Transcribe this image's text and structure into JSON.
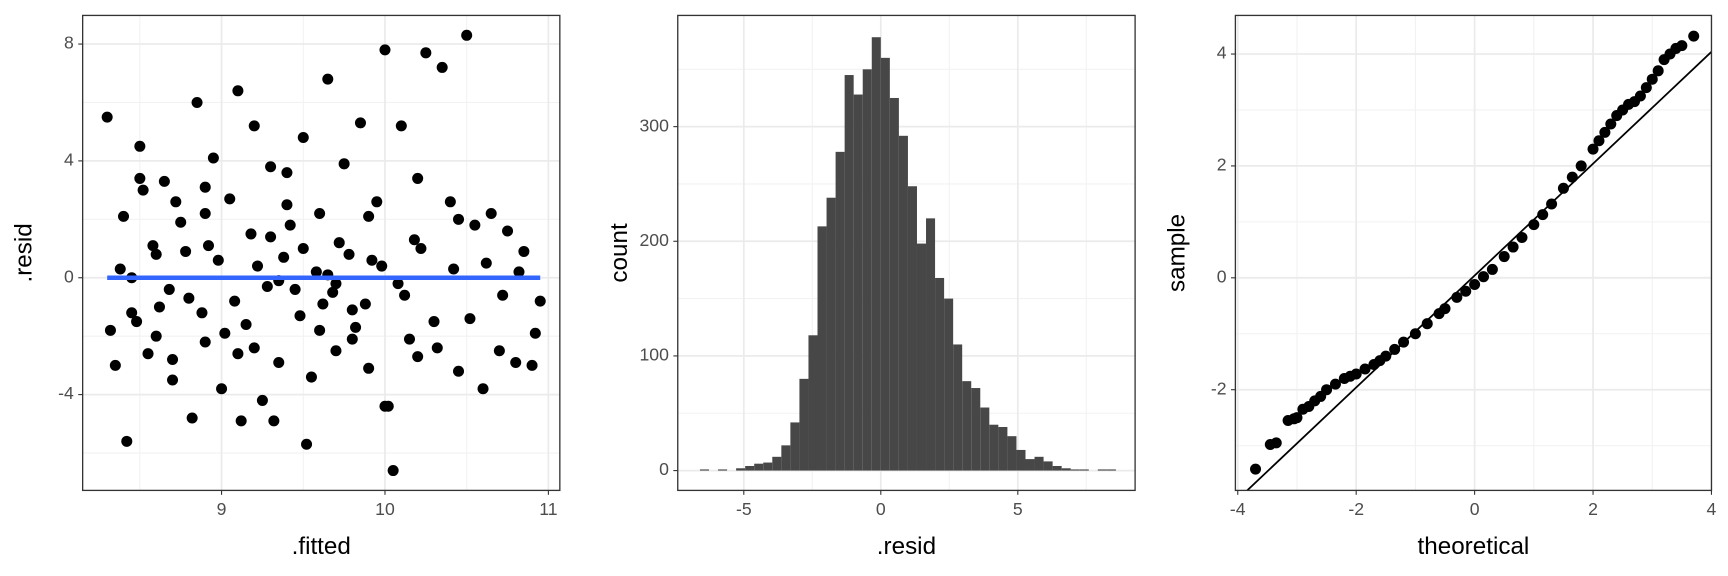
{
  "chart_data": [
    {
      "type": "scatter",
      "xlabel": ".fitted",
      "ylabel": ".resid",
      "x": [
        8.3,
        8.35,
        8.4,
        8.45,
        8.5,
        8.55,
        8.6,
        8.65,
        8.7,
        8.75,
        8.8,
        8.85,
        8.9,
        8.95,
        9.0,
        9.05,
        9.1,
        9.15,
        9.2,
        9.25,
        9.3,
        9.35,
        9.4,
        9.45,
        9.5,
        9.55,
        9.6,
        9.65,
        9.7,
        9.75,
        9.8,
        9.85,
        9.9,
        9.95,
        10.0,
        10.05,
        10.1,
        10.15,
        10.2,
        10.25,
        10.3,
        10.35,
        10.4,
        10.45,
        10.5,
        10.55,
        10.6,
        10.65,
        10.7,
        10.75,
        10.8,
        10.85,
        10.9,
        10.95,
        8.32,
        8.42,
        8.52,
        8.62,
        8.72,
        8.82,
        8.92,
        9.02,
        9.12,
        9.22,
        9.32,
        9.42,
        9.52,
        9.62,
        9.72,
        9.82,
        9.92,
        10.02,
        10.12,
        10.22,
        10.32,
        10.42,
        10.52,
        10.62,
        10.72,
        10.82,
        10.92,
        8.38,
        8.48,
        8.58,
        8.68,
        8.78,
        8.88,
        8.98,
        9.08,
        9.18,
        9.28,
        9.38,
        9.48,
        9.58,
        9.68,
        9.78,
        9.88,
        9.98,
        10.08,
        10.18,
        8.6,
        8.9,
        9.2,
        9.4,
        9.6,
        9.8,
        10.0,
        10.2,
        8.5,
        8.7,
        8.9,
        9.1,
        9.3,
        9.5,
        9.7,
        9.9,
        8.45,
        9.35,
        9.65,
        10.45
      ],
      "values": [
        5.5,
        -3.0,
        2.1,
        -1.2,
        4.5,
        -2.6,
        0.8,
        3.3,
        -3.5,
        1.9,
        -0.7,
        6.0,
        -2.2,
        4.1,
        -3.8,
        2.7,
        6.4,
        -1.6,
        5.2,
        -4.2,
        1.4,
        -2.9,
        3.6,
        -0.4,
        4.8,
        -3.4,
        2.2,
        6.8,
        -2.5,
        3.9,
        -1.1,
        5.3,
        -3.1,
        2.6,
        7.8,
        -6.6,
        5.2,
        -2.1,
        3.4,
        7.7,
        -1.5,
        7.2,
        2.6,
        -3.2,
        8.3,
        1.8,
        -3.8,
        2.2,
        -2.5,
        1.6,
        -2.9,
        0.9,
        -3.0,
        -0.8,
        -1.8,
        -5.6,
        3.0,
        -1.0,
        2.6,
        -4.8,
        1.1,
        -1.9,
        -4.9,
        0.4,
        -4.9,
        1.8,
        -5.7,
        -0.9,
        1.2,
        -1.7,
        0.6,
        -4.4,
        -0.6,
        1.0,
        -2.4,
        0.3,
        -1.4,
        0.5,
        -0.6,
        0.2,
        -1.9,
        0.3,
        -1.5,
        1.1,
        -0.4,
        0.9,
        -1.2,
        0.6,
        -0.8,
        1.5,
        -0.3,
        0.7,
        -1.3,
        0.2,
        -0.5,
        0.8,
        -0.9,
        0.4,
        -0.2,
        1.3,
        -2.0,
        2.2,
        -2.4,
        2.5,
        -1.8,
        -2.1,
        -4.4,
        -2.7,
        3.4,
        -2.8,
        3.1,
        -2.6,
        3.8,
        1.0,
        -0.2,
        2.1,
        0.0,
        -0.1,
        0.1,
        2.0
      ],
      "color": "#000000",
      "line": {
        "x": [
          8.3,
          10.95
        ],
        "values": [
          0,
          0
        ],
        "color": "#3366ff"
      },
      "xlim": [
        8.15,
        11.07
      ],
      "ylim": [
        -7.28,
        8.98
      ],
      "xticks": [
        9,
        10,
        11
      ],
      "yticks": [
        -4,
        0,
        4,
        8
      ],
      "grid": true
    },
    {
      "type": "histogram",
      "xlabel": ".resid",
      "ylabel": "count",
      "bins": [
        -6.6,
        -6.27,
        -5.94,
        -5.61,
        -5.28,
        -4.95,
        -4.62,
        -4.29,
        -3.96,
        -3.63,
        -3.3,
        -2.97,
        -2.64,
        -2.31,
        -1.98,
        -1.65,
        -1.32,
        -0.99,
        -0.66,
        -0.33,
        0,
        0.33,
        0.66,
        0.99,
        1.32,
        1.65,
        1.98,
        2.31,
        2.64,
        2.97,
        3.3,
        3.63,
        3.96,
        4.29,
        4.62,
        4.95,
        5.28,
        5.61,
        5.94,
        6.27,
        6.6,
        6.93,
        7.26,
        7.59,
        7.92,
        8.25,
        8.58
      ],
      "values": [
        1,
        0,
        1,
        0,
        2,
        4,
        6,
        7,
        12,
        22,
        42,
        80,
        118,
        213,
        238,
        278,
        345,
        328,
        350,
        378,
        360,
        325,
        292,
        248,
        198,
        220,
        168,
        150,
        110,
        78,
        72,
        55,
        40,
        38,
        30,
        18,
        10,
        12,
        8,
        4,
        2,
        1,
        1,
        0,
        1,
        1
      ],
      "color": "#474747",
      "xlim": [
        -7.41,
        9.28
      ],
      "ylim": [
        -17.3,
        397
      ],
      "xticks": [
        -5,
        0,
        5
      ],
      "yticks": [
        0,
        100,
        200,
        300
      ],
      "grid": true
    },
    {
      "type": "scatter",
      "xlabel": "theoretical",
      "ylabel": "sample",
      "x": [
        -3.7,
        -3.45,
        -3.35,
        -3.15,
        -3.05,
        -3.0,
        -2.9,
        -2.8,
        -2.7,
        -2.6,
        -2.5,
        -2.35,
        -2.2,
        -2.1,
        -2.0,
        -1.85,
        -1.7,
        -1.6,
        -1.5,
        -1.35,
        -1.2,
        -1.0,
        -0.8,
        -0.6,
        -0.5,
        -0.3,
        -0.15,
        0,
        0.15,
        0.3,
        0.5,
        0.65,
        0.8,
        1.0,
        1.15,
        1.3,
        1.5,
        1.65,
        1.8,
        2.0,
        2.1,
        2.2,
        2.3,
        2.4,
        2.5,
        2.6,
        2.7,
        2.8,
        2.9,
        3.0,
        3.1,
        3.2,
        3.3,
        3.4,
        3.5,
        3.7
      ],
      "values": [
        -3.42,
        -2.98,
        -2.95,
        -2.55,
        -2.52,
        -2.5,
        -2.35,
        -2.3,
        -2.2,
        -2.12,
        -2.0,
        -1.9,
        -1.8,
        -1.76,
        -1.72,
        -1.63,
        -1.55,
        -1.48,
        -1.4,
        -1.28,
        -1.15,
        -1.0,
        -0.82,
        -0.64,
        -0.55,
        -0.35,
        -0.24,
        -0.12,
        0.02,
        0.15,
        0.38,
        0.55,
        0.72,
        0.95,
        1.13,
        1.32,
        1.6,
        1.8,
        2.0,
        2.3,
        2.45,
        2.6,
        2.75,
        2.9,
        3.0,
        3.1,
        3.15,
        3.25,
        3.4,
        3.55,
        3.7,
        3.9,
        4.0,
        4.1,
        4.15,
        4.32
      ],
      "color": "#000000",
      "line": {
        "x": [
          -3.84,
          4.0
        ],
        "values": [
          -3.8,
          4.04
        ],
        "color": "#000000"
      },
      "xlim": [
        -4.04,
        4.0
      ],
      "ylim": [
        -3.8,
        4.69
      ],
      "xticks": [
        -4,
        -2,
        0,
        2,
        4
      ],
      "yticks": [
        -2,
        0,
        2,
        4
      ],
      "grid": true
    }
  ]
}
